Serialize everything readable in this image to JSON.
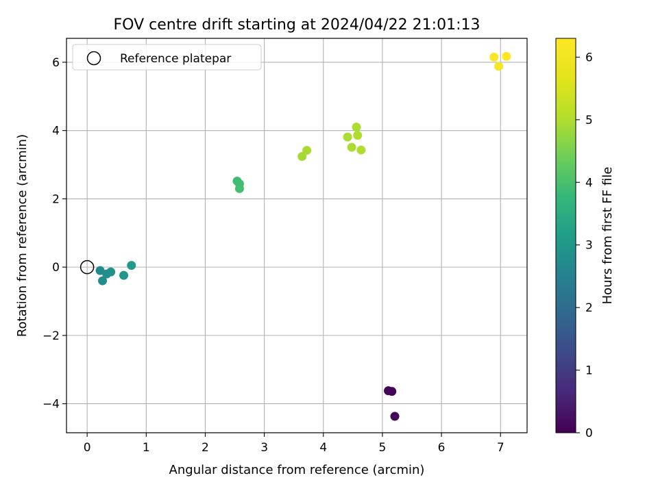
{
  "chart_data": {
    "type": "scatter",
    "title": "FOV centre drift starting at 2024/04/22 21:01:13",
    "xlabel": "Angular distance from reference (arcmin)",
    "ylabel": "Rotation from reference (arcmin)",
    "xlim": [
      -0.35,
      7.45
    ],
    "ylim": [
      -4.85,
      6.7
    ],
    "xticks": [
      0,
      1,
      2,
      3,
      4,
      5,
      6,
      7
    ],
    "xtick_labels": [
      "0",
      "1",
      "2",
      "3",
      "4",
      "5",
      "6",
      "7"
    ],
    "yticks": [
      -4,
      -2,
      0,
      2,
      4,
      6
    ],
    "ytick_labels": [
      "−4",
      "−2",
      "0",
      "2",
      "4",
      "6"
    ],
    "grid": true,
    "legend": {
      "placement": "upper-left",
      "entries": [
        "Reference platepar"
      ]
    },
    "reference_point": {
      "name": "Reference platepar",
      "x": 0,
      "y": 0,
      "marker": "open-circle"
    },
    "colorbar": {
      "label": "Hours from first FF file",
      "range": [
        0,
        6.3
      ],
      "ticks": [
        0,
        1,
        2,
        3,
        4,
        5,
        6
      ],
      "tick_labels": [
        "0",
        "1",
        "2",
        "3",
        "4",
        "5",
        "6"
      ],
      "colormap": "viridis"
    },
    "points": [
      {
        "x": 5.1,
        "y": -3.62,
        "c": 0.0
      },
      {
        "x": 5.16,
        "y": -3.64,
        "c": 0.05
      },
      {
        "x": 5.21,
        "y": -4.37,
        "c": 0.1
      },
      {
        "x": 0.22,
        "y": -0.1,
        "c": 2.7
      },
      {
        "x": 0.26,
        "y": -0.4,
        "c": 2.75
      },
      {
        "x": 0.33,
        "y": -0.2,
        "c": 2.8
      },
      {
        "x": 0.4,
        "y": -0.14,
        "c": 2.85
      },
      {
        "x": 0.62,
        "y": -0.24,
        "c": 2.95
      },
      {
        "x": 0.75,
        "y": 0.05,
        "c": 3.05
      },
      {
        "x": 2.54,
        "y": 2.52,
        "c": 3.9
      },
      {
        "x": 2.58,
        "y": 2.44,
        "c": 3.92
      },
      {
        "x": 2.58,
        "y": 2.3,
        "c": 3.94
      },
      {
        "x": 3.64,
        "y": 3.24,
        "c": 4.9
      },
      {
        "x": 3.72,
        "y": 3.42,
        "c": 4.92
      },
      {
        "x": 4.41,
        "y": 3.81,
        "c": 4.95
      },
      {
        "x": 4.48,
        "y": 3.51,
        "c": 4.96
      },
      {
        "x": 4.56,
        "y": 4.1,
        "c": 4.97
      },
      {
        "x": 4.58,
        "y": 3.86,
        "c": 4.98
      },
      {
        "x": 4.64,
        "y": 3.43,
        "c": 5.0
      },
      {
        "x": 6.89,
        "y": 6.15,
        "c": 6.2
      },
      {
        "x": 6.97,
        "y": 5.88,
        "c": 6.22
      },
      {
        "x": 7.1,
        "y": 6.17,
        "c": 6.25
      }
    ]
  }
}
